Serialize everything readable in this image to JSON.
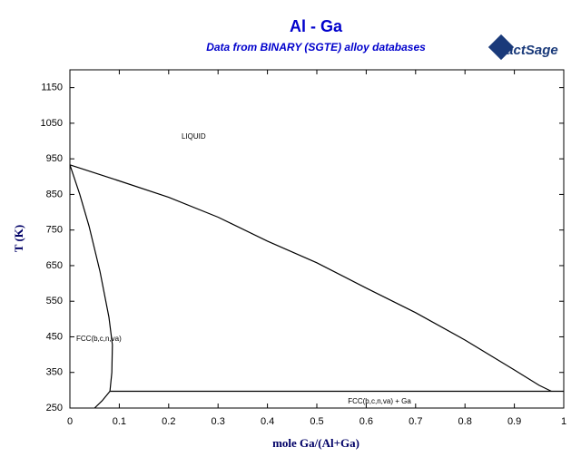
{
  "chart_data": {
    "type": "line",
    "title": "Al - Ga",
    "subtitle": "Data from BINARY (SGTE) alloy databases",
    "logo": "FactSage",
    "xlabel": "mole Ga/(Al+Ga)",
    "ylabel": "T (K)",
    "xlim": [
      0,
      1
    ],
    "ylim": [
      250,
      1200
    ],
    "xticks": [
      0,
      0.1,
      0.2,
      0.3,
      0.4,
      0.5,
      0.6,
      0.7,
      0.8,
      0.9,
      1
    ],
    "yticks": [
      250,
      350,
      450,
      550,
      650,
      750,
      850,
      950,
      1050,
      1150
    ],
    "annotations": [
      "LIQUID",
      "FCC(b,c,n,va)",
      "FCC(b,c,n,va) + Ga"
    ],
    "series": [
      {
        "color": "#000000",
        "x": [
          0,
          0.1,
          0.2,
          0.3,
          0.4,
          0.5,
          0.6,
          0.7,
          0.8,
          0.9,
          0.95,
          0.975
        ],
        "values": [
          933,
          888,
          842,
          786,
          719,
          658,
          587,
          518,
          441,
          357,
          314,
          297
        ]
      },
      {
        "color": "#000000",
        "x": [
          0,
          0.02,
          0.039,
          0.061,
          0.079,
          0.086,
          0.085,
          0.081
        ],
        "values": [
          933,
          850,
          760,
          633,
          505,
          428,
          350,
          297
        ]
      },
      {
        "color": "#000000",
        "x": [
          0.081,
          0.065,
          0.05
        ],
        "values": [
          297,
          270,
          250
        ]
      },
      {
        "color": "#000000",
        "x": [
          0.081,
          1
        ],
        "values": [
          297,
          297
        ]
      }
    ]
  }
}
